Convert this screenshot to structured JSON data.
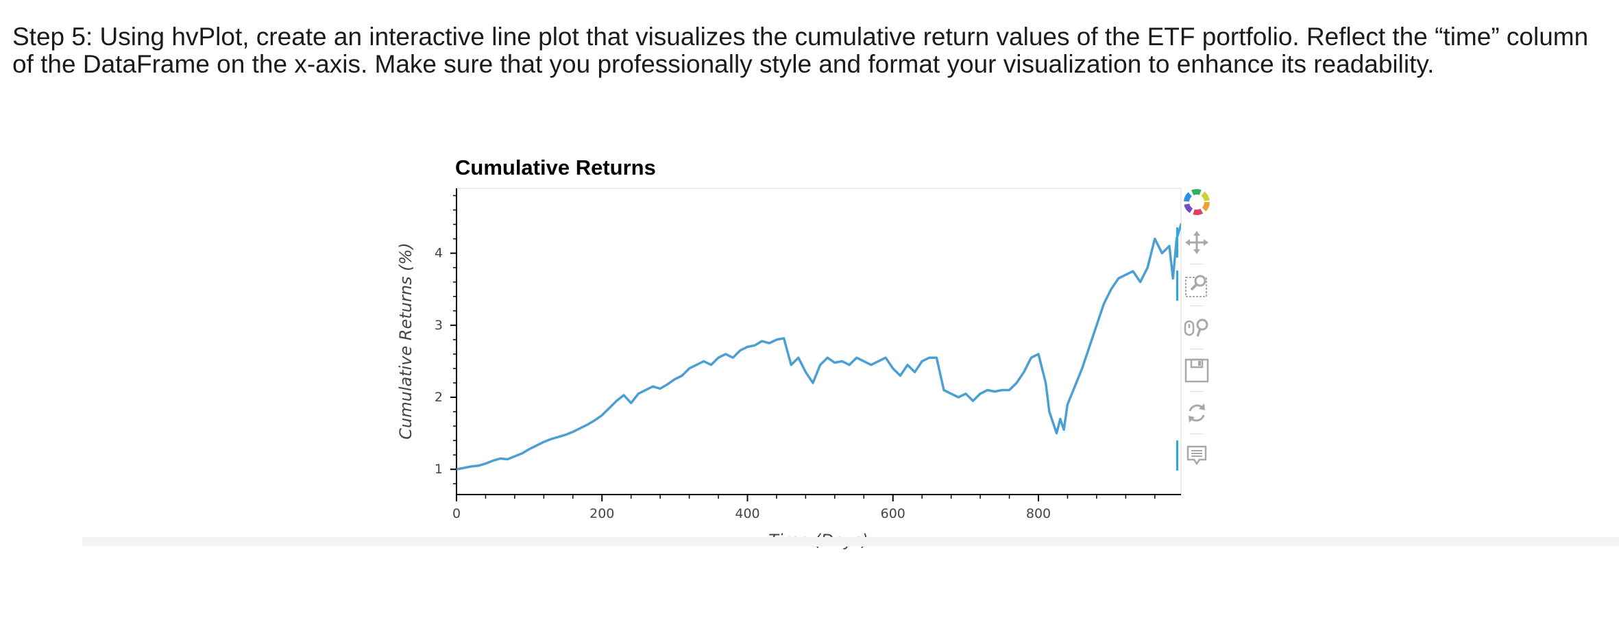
{
  "page": {
    "instructions": "Step 5: Using hvPlot, create an interactive line plot that visualizes the cumulative return values of the ETF portfolio. Reflect the “time” column of the DataFrame on the x-axis. Make sure that you professionally style and format your visualization to enhance its readability."
  },
  "toolbar": {
    "tools": [
      {
        "name": "bokeh-logo-icon",
        "active": false
      },
      {
        "name": "pan-icon",
        "active": true
      },
      {
        "name": "box-zoom-icon",
        "active": true
      },
      {
        "name": "wheel-zoom-icon",
        "active": false
      },
      {
        "name": "save-icon",
        "active": false
      },
      {
        "name": "reset-icon",
        "active": false
      },
      {
        "name": "hover-icon",
        "active": true
      }
    ],
    "accent_color": "#26aae1"
  },
  "chart_data": {
    "type": "line",
    "title": "Cumulative Returns",
    "xlabel": "Time (Days)",
    "ylabel": "Cumulative Returns (%)",
    "xlim": [
      0,
      996
    ],
    "ylim": [
      0.65,
      4.9
    ],
    "xticks": [
      0,
      200,
      400,
      600,
      800
    ],
    "yticks": [
      1,
      2,
      3,
      4
    ],
    "grid": false,
    "legend": "none",
    "line_color": "#4c9fd3",
    "series": [
      {
        "x": [
          0,
          10,
          20,
          30,
          40,
          50,
          60,
          70,
          80,
          90,
          100,
          110,
          120,
          130,
          140,
          150,
          160,
          170,
          180,
          190,
          200,
          210,
          220,
          230,
          240,
          250,
          260,
          270,
          280,
          290,
          300,
          310,
          320,
          330,
          340,
          350,
          360,
          370,
          380,
          390,
          400,
          410,
          420,
          430,
          440,
          450,
          460,
          470,
          480,
          490,
          500,
          510,
          520,
          530,
          540,
          550,
          560,
          570,
          580,
          590,
          600,
          610,
          620,
          630,
          640,
          650,
          660,
          670,
          680,
          690,
          700,
          710,
          720,
          730,
          740,
          750,
          760,
          770,
          780,
          790,
          800,
          805,
          810,
          815,
          820,
          825,
          830,
          835,
          840,
          850,
          860,
          870,
          880,
          890,
          900,
          910,
          920,
          930,
          940,
          950,
          960,
          970,
          980,
          985,
          990,
          996
        ],
        "y": [
          1.0,
          1.02,
          1.04,
          1.05,
          1.08,
          1.12,
          1.15,
          1.14,
          1.18,
          1.22,
          1.28,
          1.33,
          1.38,
          1.42,
          1.45,
          1.48,
          1.52,
          1.57,
          1.62,
          1.68,
          1.75,
          1.85,
          1.95,
          2.03,
          1.92,
          2.05,
          2.1,
          2.15,
          2.12,
          2.18,
          2.25,
          2.3,
          2.4,
          2.45,
          2.5,
          2.45,
          2.55,
          2.6,
          2.55,
          2.65,
          2.7,
          2.72,
          2.78,
          2.75,
          2.8,
          2.82,
          2.45,
          2.55,
          2.35,
          2.2,
          2.45,
          2.55,
          2.48,
          2.5,
          2.45,
          2.55,
          2.5,
          2.45,
          2.5,
          2.55,
          2.4,
          2.3,
          2.45,
          2.35,
          2.5,
          2.55,
          2.55,
          2.1,
          2.05,
          2.0,
          2.05,
          1.95,
          2.05,
          2.1,
          2.08,
          2.1,
          2.1,
          2.2,
          2.35,
          2.55,
          2.6,
          2.4,
          2.2,
          1.8,
          1.65,
          1.5,
          1.7,
          1.55,
          1.9,
          2.15,
          2.4,
          2.7,
          3.0,
          3.3,
          3.5,
          3.65,
          3.7,
          3.75,
          3.6,
          3.8,
          4.2,
          4.0,
          4.1,
          3.65,
          4.2,
          4.4
        ]
      }
    ]
  }
}
